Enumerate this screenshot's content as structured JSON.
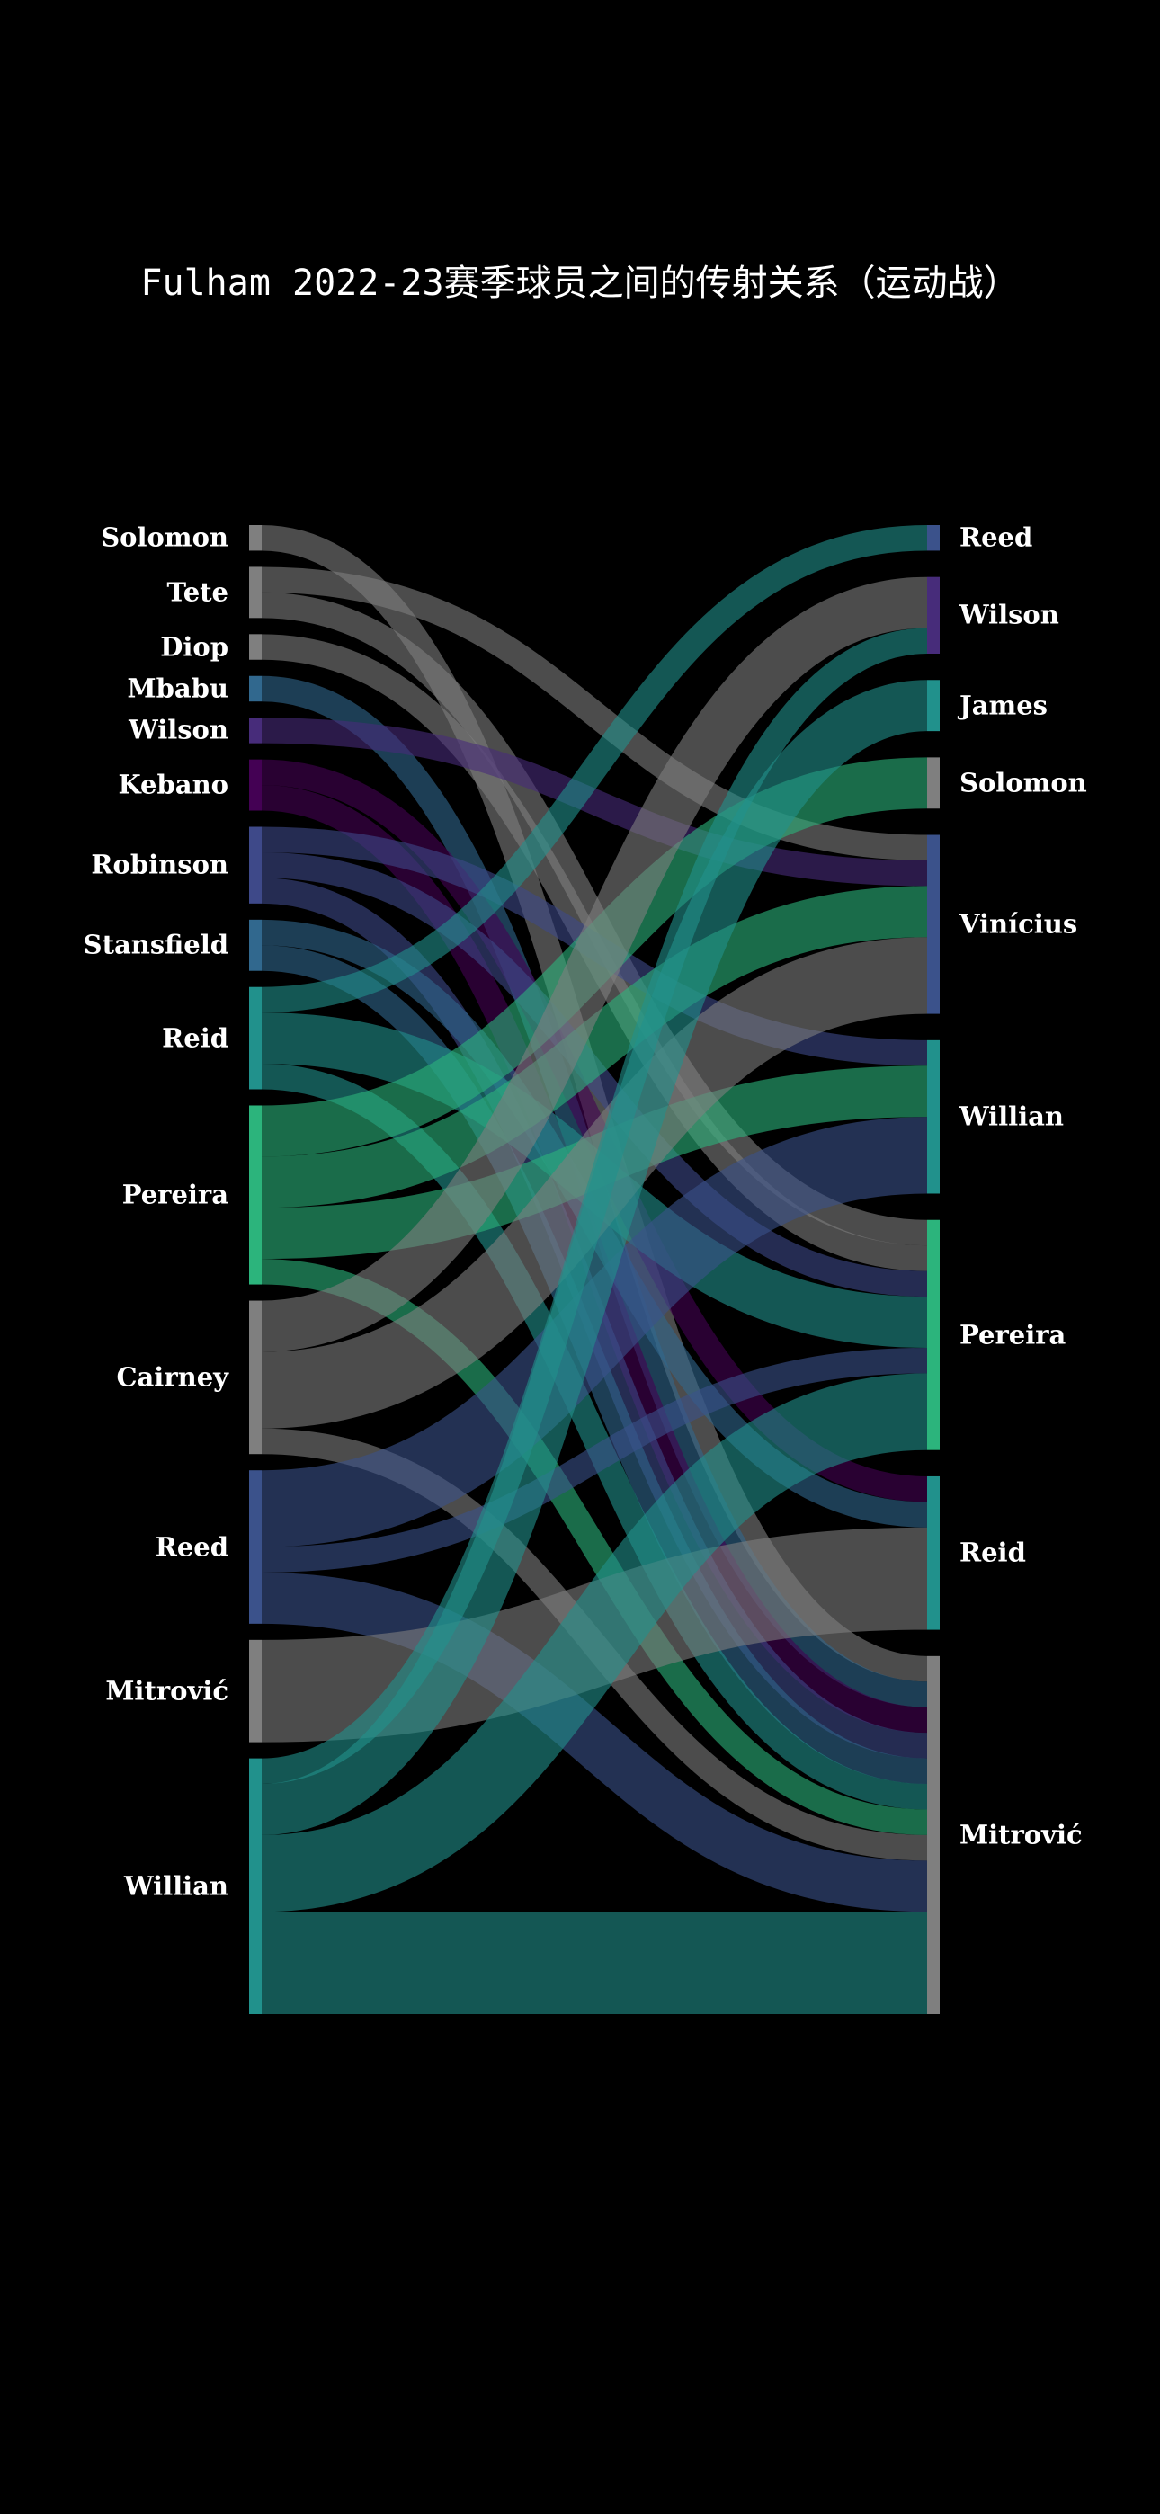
{
  "title": "Fulham 2022-23赛季球员之间的传射关系（运动战）",
  "colors": {
    "background": "#000000",
    "gray": "#7f7f7f",
    "teal": "#21918c",
    "green": "#2cb47c",
    "darkblue": "#3b528b",
    "purple": "#472c7a",
    "deepviolet": "#440154",
    "steelblue": "#31688e"
  },
  "chart_data": {
    "type": "sankey",
    "sources": [
      {
        "name": "Solomon",
        "color": "#7f7f7f"
      },
      {
        "name": "Tete",
        "color": "#7f7f7f"
      },
      {
        "name": "Diop",
        "color": "#7f7f7f"
      },
      {
        "name": "Mbabu",
        "color": "#31688e"
      },
      {
        "name": "Wilson",
        "color": "#472c7a"
      },
      {
        "name": "Kebano",
        "color": "#440154"
      },
      {
        "name": "Robinson",
        "color": "#3e4989"
      },
      {
        "name": "Stansfield",
        "color": "#31688e"
      },
      {
        "name": "Reid",
        "color": "#21918c"
      },
      {
        "name": "Pereira",
        "color": "#2cb47c"
      },
      {
        "name": "Cairney",
        "color": "#7f7f7f"
      },
      {
        "name": "Reed",
        "color": "#3b528b"
      },
      {
        "name": "Mitrović",
        "color": "#7f7f7f"
      },
      {
        "name": "Willian",
        "color": "#21918c"
      }
    ],
    "targets": [
      {
        "name": "Reed",
        "color": "#3b528b"
      },
      {
        "name": "Wilson",
        "color": "#472c7a"
      },
      {
        "name": "James",
        "color": "#21918c"
      },
      {
        "name": "Solomon",
        "color": "#7f7f7f"
      },
      {
        "name": "Vinícius",
        "color": "#3b528b"
      },
      {
        "name": "Willian",
        "color": "#21918c"
      },
      {
        "name": "Pereira",
        "color": "#2cb47c"
      },
      {
        "name": "Reid",
        "color": "#21918c"
      },
      {
        "name": "Mitrović",
        "color": "#7f7f7f"
      }
    ],
    "links": [
      {
        "source": "Solomon",
        "target": "Mitrović",
        "value": 1
      },
      {
        "source": "Tete",
        "target": "Vinícius",
        "value": 1
      },
      {
        "source": "Tete",
        "target": "Pereira",
        "value": 1
      },
      {
        "source": "Diop",
        "target": "Pereira",
        "value": 1
      },
      {
        "source": "Mbabu",
        "target": "Mitrović",
        "value": 1
      },
      {
        "source": "Wilson",
        "target": "Vinícius",
        "value": 1
      },
      {
        "source": "Kebano",
        "target": "Reid",
        "value": 1
      },
      {
        "source": "Kebano",
        "target": "Mitrović",
        "value": 1
      },
      {
        "source": "Robinson",
        "target": "Willian",
        "value": 1
      },
      {
        "source": "Robinson",
        "target": "Pereira",
        "value": 1
      },
      {
        "source": "Robinson",
        "target": "Mitrović",
        "value": 1
      },
      {
        "source": "Stansfield",
        "target": "Reid",
        "value": 1
      },
      {
        "source": "Stansfield",
        "target": "Mitrović",
        "value": 1
      },
      {
        "source": "Reid",
        "target": "Reed",
        "value": 1
      },
      {
        "source": "Reid",
        "target": "Pereira",
        "value": 2
      },
      {
        "source": "Reid",
        "target": "Mitrović",
        "value": 1
      },
      {
        "source": "Pereira",
        "target": "Solomon",
        "value": 2
      },
      {
        "source": "Pereira",
        "target": "Vinícius",
        "value": 2
      },
      {
        "source": "Pereira",
        "target": "Willian",
        "value": 2
      },
      {
        "source": "Pereira",
        "target": "Mitrović",
        "value": 1
      },
      {
        "source": "Cairney",
        "target": "Wilson",
        "value": 2
      },
      {
        "source": "Cairney",
        "target": "Vinícius",
        "value": 3
      },
      {
        "source": "Cairney",
        "target": "Mitrović",
        "value": 1
      },
      {
        "source": "Reed",
        "target": "Willian",
        "value": 3
      },
      {
        "source": "Reed",
        "target": "Pereira",
        "value": 1
      },
      {
        "source": "Reed",
        "target": "Mitrović",
        "value": 2
      },
      {
        "source": "Mitrović",
        "target": "Reid",
        "value": 4
      },
      {
        "source": "Willian",
        "target": "Wilson",
        "value": 1
      },
      {
        "source": "Willian",
        "target": "James",
        "value": 2
      },
      {
        "source": "Willian",
        "target": "Pereira",
        "value": 3
      },
      {
        "source": "Willian",
        "target": "Mitrović",
        "value": 4
      }
    ]
  }
}
